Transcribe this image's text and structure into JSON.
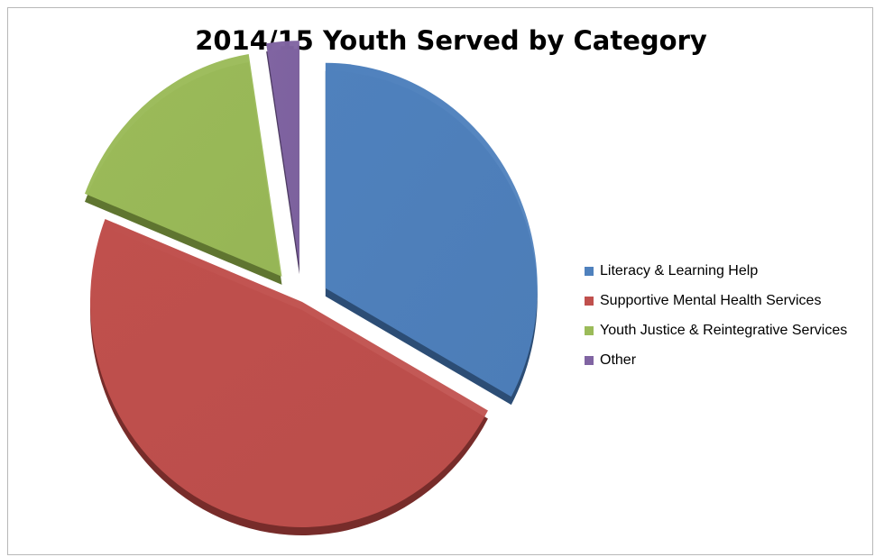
{
  "chart_data": {
    "type": "pie",
    "title": "2014/15 Youth Served by Category",
    "exploded": true,
    "three_d": true,
    "legend_position": "right",
    "categories": [
      "Literacy & Learning Help",
      "Supportive Mental Health Services",
      "Youth Justice & Reintegrative Services",
      "Other"
    ],
    "values": [
      33,
      48,
      16.5,
      2.5
    ],
    "unit": "percent",
    "colors": [
      "#4f81bd",
      "#c0504d",
      "#9bbb59",
      "#8064a2"
    ],
    "shade_colors": [
      "#2c4d75",
      "#772c2a",
      "#5f7530",
      "#4d3b62"
    ]
  }
}
